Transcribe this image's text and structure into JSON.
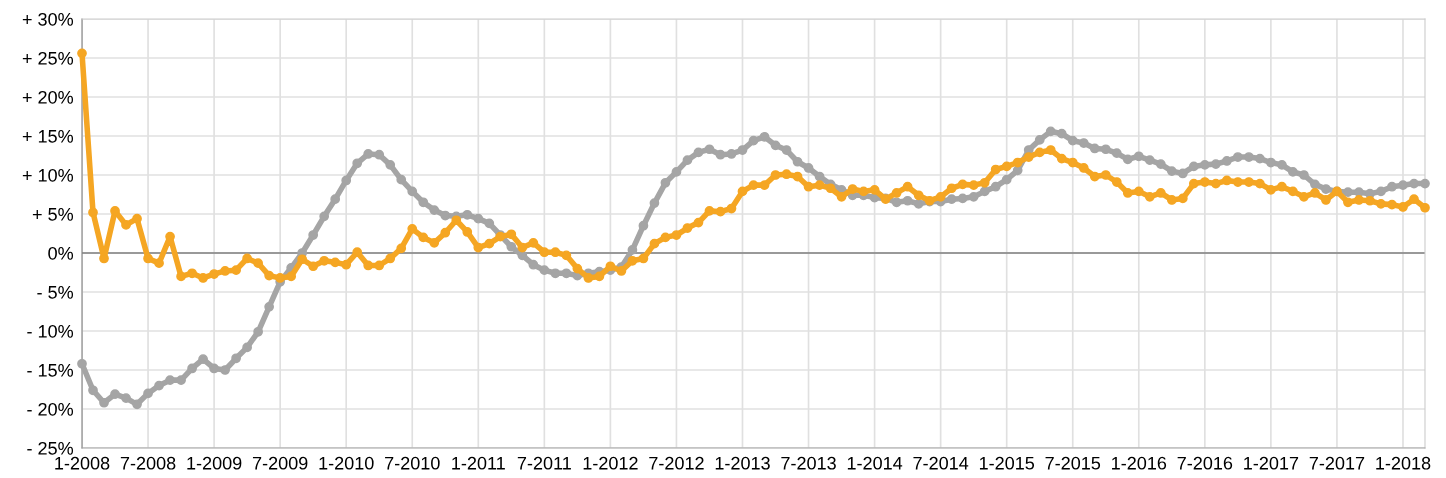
{
  "chart_data": {
    "type": "line",
    "x": [
      "2008-01",
      "2008-02",
      "2008-03",
      "2008-04",
      "2008-05",
      "2008-06",
      "2008-07",
      "2008-08",
      "2008-09",
      "2008-10",
      "2008-11",
      "2008-12",
      "2009-01",
      "2009-02",
      "2009-03",
      "2009-04",
      "2009-05",
      "2009-06",
      "2009-07",
      "2009-08",
      "2009-09",
      "2009-10",
      "2009-11",
      "2009-12",
      "2010-01",
      "2010-02",
      "2010-03",
      "2010-04",
      "2010-05",
      "2010-06",
      "2010-07",
      "2010-08",
      "2010-09",
      "2010-10",
      "2010-11",
      "2010-12",
      "2011-01",
      "2011-02",
      "2011-03",
      "2011-04",
      "2011-05",
      "2011-06",
      "2011-07",
      "2011-08",
      "2011-09",
      "2011-10",
      "2011-11",
      "2011-12",
      "2012-01",
      "2012-02",
      "2012-03",
      "2012-04",
      "2012-05",
      "2012-06",
      "2012-07",
      "2012-08",
      "2012-09",
      "2012-10",
      "2012-11",
      "2012-12",
      "2013-01",
      "2013-02",
      "2013-03",
      "2013-04",
      "2013-05",
      "2013-06",
      "2013-07",
      "2013-08",
      "2013-09",
      "2013-10",
      "2013-11",
      "2013-12",
      "2014-01",
      "2014-02",
      "2014-03",
      "2014-04",
      "2014-05",
      "2014-06",
      "2014-07",
      "2014-08",
      "2014-09",
      "2014-10",
      "2014-11",
      "2014-12",
      "2015-01",
      "2015-02",
      "2015-03",
      "2015-04",
      "2015-05",
      "2015-06",
      "2015-07",
      "2015-08",
      "2015-09",
      "2015-10",
      "2015-11",
      "2015-12",
      "2016-01",
      "2016-02",
      "2016-03",
      "2016-04",
      "2016-05",
      "2016-06",
      "2016-07",
      "2016-08",
      "2016-09",
      "2016-10",
      "2016-11",
      "2016-12",
      "2017-01",
      "2017-02",
      "2017-03",
      "2017-04",
      "2017-05",
      "2017-06",
      "2017-07",
      "2017-08",
      "2017-09",
      "2017-10",
      "2017-11",
      "2017-12",
      "2018-01",
      "2018-02",
      "2018-03"
    ],
    "marker": "circle",
    "line_style": "solid",
    "grid": true,
    "xlim": [
      "2008-01",
      "2018-03"
    ],
    "xticks": [
      {
        "value": "2008-01",
        "label": "1-2008"
      },
      {
        "value": "2008-07",
        "label": "7-2008"
      },
      {
        "value": "2009-01",
        "label": "1-2009"
      },
      {
        "value": "2009-07",
        "label": "7-2009"
      },
      {
        "value": "2010-01",
        "label": "1-2010"
      },
      {
        "value": "2010-07",
        "label": "7-2010"
      },
      {
        "value": "2011-01",
        "label": "1-2011"
      },
      {
        "value": "2011-07",
        "label": "7-2011"
      },
      {
        "value": "2012-01",
        "label": "1-2012"
      },
      {
        "value": "2012-07",
        "label": "7-2012"
      },
      {
        "value": "2013-01",
        "label": "1-2013"
      },
      {
        "value": "2013-07",
        "label": "7-2013"
      },
      {
        "value": "2014-01",
        "label": "1-2014"
      },
      {
        "value": "2014-07",
        "label": "7-2014"
      },
      {
        "value": "2015-01",
        "label": "1-2015"
      },
      {
        "value": "2015-07",
        "label": "7-2015"
      },
      {
        "value": "2016-01",
        "label": "1-2016"
      },
      {
        "value": "2016-07",
        "label": "7-2016"
      },
      {
        "value": "2017-01",
        "label": "1-2017"
      },
      {
        "value": "2017-07",
        "label": "7-2017"
      },
      {
        "value": "2018-01",
        "label": "1-2018"
      }
    ],
    "ylim": [
      -25,
      30
    ],
    "yticks": [
      {
        "value": -25,
        "label": "- 25%"
      },
      {
        "value": -20,
        "label": "- 20%"
      },
      {
        "value": -15,
        "label": "- 15%"
      },
      {
        "value": -10,
        "label": "- 10%"
      },
      {
        "value": -5,
        "label": "- 5%"
      },
      {
        "value": 0,
        "label": "0%"
      },
      {
        "value": 5,
        "label": "+ 5%"
      },
      {
        "value": 10,
        "label": "+ 10%"
      },
      {
        "value": 15,
        "label": "+ 15%"
      },
      {
        "value": 20,
        "label": "+ 20%"
      },
      {
        "value": 25,
        "label": "+ 25%"
      },
      {
        "value": 30,
        "label": "+ 30%"
      }
    ],
    "ref_lines": [
      {
        "axis": "y",
        "value": 0,
        "color": "#7f7f7f"
      }
    ],
    "series": [
      {
        "color": "#a5a5a5",
        "values": [
          -14.2,
          -17.6,
          -19.2,
          -18.1,
          -18.6,
          -19.4,
          -18.0,
          -17.0,
          -16.3,
          -16.3,
          -14.8,
          -13.6,
          -14.8,
          -15.0,
          -13.5,
          -12.1,
          -10.1,
          -6.9,
          -3.7,
          -1.9,
          0.0,
          2.3,
          4.7,
          6.9,
          9.3,
          11.5,
          12.7,
          12.6,
          11.3,
          9.4,
          7.9,
          6.5,
          5.5,
          4.8,
          4.7,
          4.9,
          4.4,
          3.8,
          2.3,
          0.8,
          -0.3,
          -1.5,
          -2.2,
          -2.6,
          -2.6,
          -2.9,
          -2.6,
          -2.4,
          -2.2,
          -1.8,
          0.4,
          3.5,
          6.4,
          9.0,
          10.4,
          11.9,
          12.9,
          13.3,
          12.6,
          12.7,
          13.2,
          14.4,
          14.9,
          13.8,
          13.2,
          11.7,
          10.9,
          9.8,
          8.8,
          8.1,
          7.4,
          7.4,
          7.1,
          7.0,
          6.5,
          6.7,
          6.3,
          6.6,
          6.6,
          6.9,
          7.0,
          7.2,
          7.9,
          8.5,
          9.4,
          10.6,
          13.2,
          14.5,
          15.6,
          15.3,
          14.4,
          14.1,
          13.4,
          13.3,
          12.8,
          12.0,
          12.4,
          11.9,
          11.4,
          10.5,
          10.2,
          11.1,
          11.3,
          11.4,
          11.8,
          12.3,
          12.3,
          12.1,
          11.6,
          11.3,
          10.4,
          10.0,
          8.8,
          8.2,
          7.9,
          7.8,
          7.8,
          7.6,
          7.9,
          8.5,
          8.7,
          8.9,
          8.9
        ]
      },
      {
        "color": "#f5a623",
        "values": [
          25.6,
          5.2,
          -0.7,
          5.4,
          3.6,
          4.4,
          -0.7,
          -1.3,
          2.1,
          -3.0,
          -2.6,
          -3.2,
          -2.7,
          -2.3,
          -2.2,
          -0.7,
          -1.3,
          -2.9,
          -3.2,
          -3.0,
          -0.8,
          -1.7,
          -1.0,
          -1.2,
          -1.5,
          0.1,
          -1.6,
          -1.6,
          -0.7,
          0.6,
          3.1,
          2.0,
          1.3,
          2.6,
          4.2,
          2.7,
          0.7,
          1.2,
          2.1,
          2.4,
          0.7,
          1.3,
          0.1,
          0.1,
          -0.3,
          -2.0,
          -3.2,
          -3.0,
          -1.7,
          -2.3,
          -1.0,
          -0.7,
          1.2,
          2.0,
          2.3,
          3.2,
          3.9,
          5.4,
          5.3,
          5.7,
          7.9,
          8.7,
          8.7,
          10.0,
          10.1,
          9.8,
          8.5,
          8.7,
          8.3,
          7.2,
          8.2,
          7.9,
          8.1,
          6.9,
          7.7,
          8.5,
          7.4,
          6.7,
          7.2,
          8.3,
          8.8,
          8.7,
          9.0,
          10.7,
          11.1,
          11.6,
          12.3,
          12.9,
          13.2,
          12.1,
          11.6,
          10.9,
          9.8,
          10.0,
          9.1,
          7.7,
          7.9,
          7.2,
          7.7,
          6.8,
          7.0,
          8.9,
          9.1,
          8.9,
          9.3,
          9.1,
          9.1,
          8.9,
          8.1,
          8.5,
          7.9,
          7.2,
          7.7,
          6.8,
          7.9,
          6.5,
          6.8,
          6.7,
          6.3,
          6.2,
          5.9,
          6.9,
          5.8
        ]
      }
    ]
  }
}
